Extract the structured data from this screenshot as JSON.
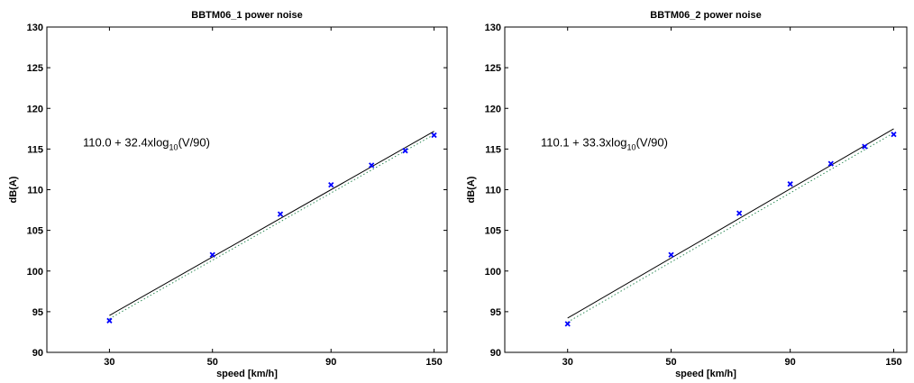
{
  "chart_data": [
    {
      "type": "scatter",
      "title": "BBTM06_1 power noise",
      "xlabel": "speed [km/h]",
      "ylabel": "dB(A)",
      "xscale": "log",
      "xlim": [
        22,
        160
      ],
      "ylim": [
        90,
        130
      ],
      "xticks": [
        30,
        50,
        90,
        150
      ],
      "yticks": [
        90,
        95,
        100,
        105,
        110,
        115,
        120,
        125,
        130
      ],
      "grid": false,
      "annotation": {
        "main": "110.0 + 32.4xlog",
        "sub": "10",
        "tail": "(V/90)"
      },
      "points": [
        {
          "x": 30,
          "y": 93.9
        },
        {
          "x": 50,
          "y": 102.0
        },
        {
          "x": 70,
          "y": 107.0
        },
        {
          "x": 90,
          "y": 110.6
        },
        {
          "x": 110,
          "y": 113.0
        },
        {
          "x": 130,
          "y": 114.8
        },
        {
          "x": 150,
          "y": 116.7
        }
      ],
      "fit_line": {
        "intercept": 110.0,
        "slope": 32.4,
        "ref": 90,
        "color": "#000000"
      },
      "reference_line": {
        "intercept": 109.6,
        "slope": 32.4,
        "ref": 90,
        "color": "#2e8b57",
        "style": "dotted"
      },
      "marker_color": "#0000ff"
    },
    {
      "type": "scatter",
      "title": "BBTM06_2 power noise",
      "xlabel": "speed [km/h]",
      "ylabel": "dB(A)",
      "xscale": "log",
      "xlim": [
        22,
        160
      ],
      "ylim": [
        90,
        130
      ],
      "xticks": [
        30,
        50,
        90,
        150
      ],
      "yticks": [
        90,
        95,
        100,
        105,
        110,
        115,
        120,
        125,
        130
      ],
      "grid": false,
      "annotation": {
        "main": "110.1 + 33.3xlog",
        "sub": "10",
        "tail": "(V/90)"
      },
      "points": [
        {
          "x": 30,
          "y": 93.5
        },
        {
          "x": 50,
          "y": 102.0
        },
        {
          "x": 70,
          "y": 107.1
        },
        {
          "x": 90,
          "y": 110.7
        },
        {
          "x": 110,
          "y": 113.2
        },
        {
          "x": 130,
          "y": 115.3
        },
        {
          "x": 150,
          "y": 116.8
        }
      ],
      "fit_line": {
        "intercept": 110.1,
        "slope": 33.3,
        "ref": 90,
        "color": "#000000"
      },
      "reference_line": {
        "intercept": 109.6,
        "slope": 33.3,
        "ref": 90,
        "color": "#2e8b57",
        "style": "dotted"
      },
      "marker_color": "#0000ff"
    }
  ]
}
